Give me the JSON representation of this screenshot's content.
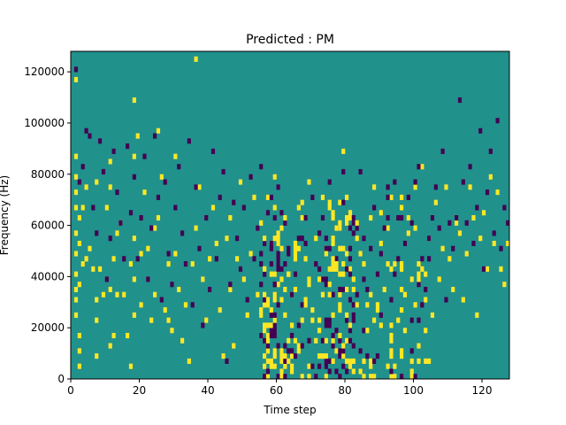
{
  "chart_data": {
    "type": "heatmap",
    "title": "Predicted : PM",
    "xlabel": "Time step",
    "ylabel": "Frequency (Hz)",
    "xlim": [
      0,
      128
    ],
    "ylim": [
      0,
      128000
    ],
    "xticks": [
      0,
      20,
      40,
      60,
      80,
      100,
      120
    ],
    "yticks": [
      0,
      20000,
      40000,
      60000,
      80000,
      100000,
      120000
    ],
    "ytick_labels": [
      "0",
      "20000",
      "40000",
      "60000",
      "80000",
      "100000",
      "120000"
    ],
    "grid": false,
    "colormap": {
      "background": "#21918c",
      "high": "#fde725",
      "low": "#440154"
    },
    "n_time_steps": 128,
    "n_freq_bins": 64,
    "bin_width_hz": 2000,
    "high_cells": [
      [
        1,
        12
      ],
      [
        1,
        15
      ],
      [
        1,
        17
      ],
      [
        1,
        20
      ],
      [
        1,
        24
      ],
      [
        1,
        28
      ],
      [
        1,
        33
      ],
      [
        1,
        36
      ],
      [
        1,
        39
      ],
      [
        1,
        43
      ],
      [
        1,
        58
      ],
      [
        2,
        2
      ],
      [
        2,
        5
      ],
      [
        2,
        8
      ],
      [
        2,
        18
      ],
      [
        2,
        26
      ],
      [
        2,
        31
      ],
      [
        3,
        22
      ],
      [
        3,
        33
      ],
      [
        4,
        23
      ],
      [
        4,
        37
      ],
      [
        5,
        25
      ],
      [
        6,
        21
      ],
      [
        7,
        4
      ],
      [
        7,
        11
      ],
      [
        7,
        15
      ],
      [
        7,
        38
      ],
      [
        8,
        21
      ],
      [
        9,
        16
      ],
      [
        10,
        33
      ],
      [
        11,
        6
      ],
      [
        11,
        17
      ],
      [
        11,
        37
      ],
      [
        11,
        42
      ],
      [
        12,
        8
      ],
      [
        12,
        23
      ],
      [
        13,
        16
      ],
      [
        13,
        28
      ],
      [
        14,
        30
      ],
      [
        15,
        16
      ],
      [
        16,
        8
      ],
      [
        17,
        2
      ],
      [
        17,
        22
      ],
      [
        18,
        12
      ],
      [
        18,
        19
      ],
      [
        18,
        27
      ],
      [
        18,
        43
      ],
      [
        18,
        54
      ],
      [
        19,
        47
      ],
      [
        20,
        14
      ],
      [
        20,
        24
      ],
      [
        21,
        36
      ],
      [
        22,
        25
      ],
      [
        23,
        11
      ],
      [
        24,
        16
      ],
      [
        24,
        29
      ],
      [
        25,
        31
      ],
      [
        25,
        48
      ],
      [
        26,
        39
      ],
      [
        27,
        13
      ],
      [
        28,
        11
      ],
      [
        28,
        22
      ],
      [
        29,
        9
      ],
      [
        30,
        24
      ],
      [
        30,
        43
      ],
      [
        31,
        17
      ],
      [
        32,
        7
      ],
      [
        33,
        14
      ],
      [
        34,
        3
      ],
      [
        35,
        22
      ],
      [
        36,
        29
      ],
      [
        36,
        62
      ],
      [
        37,
        37
      ],
      [
        38,
        19
      ],
      [
        39,
        11
      ],
      [
        40,
        23
      ],
      [
        41,
        33
      ],
      [
        42,
        26
      ],
      [
        43,
        13
      ],
      [
        44,
        4
      ],
      [
        45,
        27
      ],
      [
        46,
        17
      ],
      [
        46,
        31
      ],
      [
        47,
        6
      ],
      [
        48,
        23
      ],
      [
        49,
        38
      ],
      [
        50,
        19
      ],
      [
        51,
        12
      ],
      [
        52,
        24
      ],
      [
        53,
        35
      ],
      [
        54,
        16
      ],
      [
        55,
        8
      ],
      [
        56,
        21
      ],
      [
        57,
        14
      ],
      [
        58,
        26
      ],
      [
        59,
        39
      ],
      [
        60,
        18
      ],
      [
        61,
        29
      ],
      [
        62,
        12
      ],
      [
        63,
        20
      ],
      [
        64,
        16
      ],
      [
        65,
        26
      ],
      [
        66,
        33
      ],
      [
        67,
        31
      ],
      [
        68,
        23
      ],
      [
        69,
        38
      ],
      [
        70,
        13
      ],
      [
        71,
        27
      ],
      [
        72,
        11
      ],
      [
        73,
        19
      ],
      [
        74,
        25
      ],
      [
        75,
        33
      ],
      [
        76,
        21
      ],
      [
        77,
        29
      ],
      [
        78,
        13
      ],
      [
        79,
        44
      ],
      [
        80,
        24
      ],
      [
        81,
        21
      ],
      [
        82,
        17
      ],
      [
        83,
        27
      ],
      [
        84,
        24
      ],
      [
        85,
        22
      ],
      [
        86,
        14
      ],
      [
        87,
        31
      ],
      [
        88,
        37
      ],
      [
        89,
        13
      ],
      [
        90,
        26
      ],
      [
        91,
        17
      ],
      [
        92,
        29
      ],
      [
        93,
        35
      ],
      [
        94,
        22
      ],
      [
        95,
        11
      ],
      [
        96,
        33
      ],
      [
        97,
        16
      ],
      [
        98,
        28
      ],
      [
        99,
        19
      ],
      [
        100,
        37
      ],
      [
        101,
        22
      ],
      [
        102,
        41
      ],
      [
        103,
        15
      ],
      [
        104,
        27
      ],
      [
        105,
        12
      ],
      [
        106,
        34
      ],
      [
        107,
        19
      ],
      [
        108,
        25
      ],
      [
        109,
        37
      ],
      [
        110,
        23
      ],
      [
        111,
        17
      ],
      [
        112,
        30
      ],
      [
        113,
        28
      ],
      [
        114,
        15
      ],
      [
        115,
        24
      ],
      [
        116,
        37
      ],
      [
        117,
        31
      ],
      [
        118,
        12
      ],
      [
        119,
        27
      ],
      [
        120,
        32
      ],
      [
        121,
        21
      ],
      [
        122,
        39
      ],
      [
        123,
        26
      ],
      [
        124,
        36
      ],
      [
        125,
        21
      ],
      [
        126,
        18
      ],
      [
        127,
        26
      ]
    ],
    "low_cells": [
      [
        1,
        60
      ],
      [
        2,
        38
      ],
      [
        3,
        41
      ],
      [
        4,
        48
      ],
      [
        5,
        47
      ],
      [
        6,
        33
      ],
      [
        7,
        28
      ],
      [
        8,
        46
      ],
      [
        9,
        40
      ],
      [
        10,
        19
      ],
      [
        11,
        27
      ],
      [
        12,
        44
      ],
      [
        13,
        36
      ],
      [
        14,
        30
      ],
      [
        15,
        23
      ],
      [
        16,
        45
      ],
      [
        17,
        32
      ],
      [
        18,
        39
      ],
      [
        19,
        23
      ],
      [
        20,
        31
      ],
      [
        21,
        43
      ],
      [
        22,
        19
      ],
      [
        23,
        29
      ],
      [
        24,
        47
      ],
      [
        25,
        35
      ],
      [
        26,
        15
      ],
      [
        27,
        38
      ],
      [
        28,
        24
      ],
      [
        29,
        18
      ],
      [
        30,
        33
      ],
      [
        31,
        41
      ],
      [
        32,
        28
      ],
      [
        33,
        22
      ],
      [
        34,
        46
      ],
      [
        35,
        14
      ],
      [
        36,
        37
      ],
      [
        37,
        25
      ],
      [
        38,
        10
      ],
      [
        39,
        31
      ],
      [
        40,
        17
      ],
      [
        41,
        44
      ],
      [
        42,
        23
      ],
      [
        43,
        35
      ],
      [
        44,
        40
      ],
      [
        45,
        3
      ],
      [
        46,
        18
      ],
      [
        47,
        34
      ],
      [
        48,
        27
      ],
      [
        49,
        21
      ],
      [
        50,
        33
      ],
      [
        51,
        15
      ],
      [
        52,
        39
      ],
      [
        53,
        23
      ],
      [
        54,
        29
      ],
      [
        55,
        41
      ],
      [
        56,
        20
      ],
      [
        57,
        32
      ],
      [
        58,
        26
      ],
      [
        59,
        18
      ],
      [
        60,
        37
      ],
      [
        61,
        21
      ],
      [
        62,
        30
      ],
      [
        63,
        24
      ],
      [
        64,
        16
      ],
      [
        65,
        20
      ],
      [
        66,
        10
      ],
      [
        67,
        27
      ],
      [
        68,
        31
      ],
      [
        69,
        7
      ],
      [
        70,
        35
      ],
      [
        71,
        22
      ],
      [
        72,
        28
      ],
      [
        73,
        19
      ],
      [
        74,
        25
      ],
      [
        75,
        38
      ],
      [
        76,
        16
      ],
      [
        77,
        23
      ],
      [
        78,
        29
      ],
      [
        79,
        40
      ],
      [
        80,
        21
      ],
      [
        81,
        25
      ],
      [
        82,
        30
      ],
      [
        83,
        16
      ],
      [
        84,
        40
      ],
      [
        85,
        27
      ],
      [
        86,
        17
      ],
      [
        87,
        25
      ],
      [
        88,
        33
      ],
      [
        89,
        20
      ],
      [
        90,
        24
      ],
      [
        91,
        29
      ],
      [
        92,
        37
      ],
      [
        93,
        15
      ],
      [
        94,
        38
      ],
      [
        95,
        23
      ],
      [
        96,
        31
      ],
      [
        97,
        26
      ],
      [
        98,
        35
      ],
      [
        99,
        30
      ],
      [
        100,
        38
      ],
      [
        101,
        41
      ],
      [
        102,
        23
      ],
      [
        103,
        17
      ],
      [
        104,
        27
      ],
      [
        105,
        31
      ],
      [
        106,
        37
      ],
      [
        107,
        29
      ],
      [
        108,
        44
      ],
      [
        109,
        15
      ],
      [
        110,
        30
      ],
      [
        111,
        25
      ],
      [
        112,
        31
      ],
      [
        113,
        54
      ],
      [
        114,
        38
      ],
      [
        115,
        30
      ],
      [
        116,
        41
      ],
      [
        117,
        26
      ],
      [
        118,
        33
      ],
      [
        119,
        48
      ],
      [
        120,
        21
      ],
      [
        121,
        36
      ],
      [
        122,
        44
      ],
      [
        123,
        28
      ],
      [
        124,
        50
      ],
      [
        125,
        25
      ],
      [
        126,
        33
      ],
      [
        127,
        30
      ]
    ]
  }
}
